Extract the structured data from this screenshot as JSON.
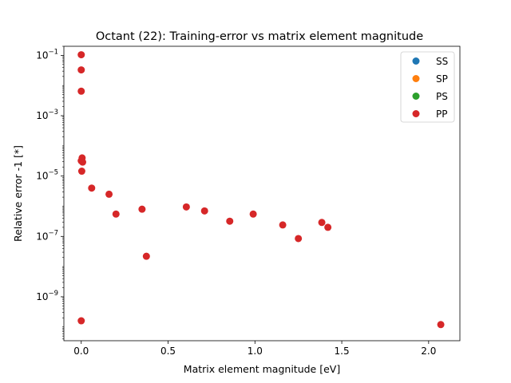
{
  "chart_data": {
    "type": "scatter",
    "title": "Octant (22): Training-error vs matrix element magnitude",
    "xlabel": "Matrix element magnitude [eV]",
    "ylabel": "Relative error -1 [*]",
    "xlim": [
      -0.1,
      2.18
    ],
    "ylim": [
      3.5e-11,
      0.2
    ],
    "yscale": "log",
    "grid": false,
    "legend_position": "top-right",
    "x_ticks": [
      {
        "value": 0.0,
        "label": "0.0"
      },
      {
        "value": 0.5,
        "label": "0.5"
      },
      {
        "value": 1.0,
        "label": "1.0"
      },
      {
        "value": 1.5,
        "label": "1.5"
      },
      {
        "value": 2.0,
        "label": "2.0"
      }
    ],
    "y_ticks": [
      {
        "exp": -9,
        "base": "10",
        "sup": "−9"
      },
      {
        "exp": -7,
        "base": "10",
        "sup": "−7"
      },
      {
        "exp": -5,
        "base": "10",
        "sup": "−5"
      },
      {
        "exp": -3,
        "base": "10",
        "sup": "−3"
      },
      {
        "exp": -1,
        "base": "10",
        "sup": "−1"
      }
    ],
    "series": [
      {
        "name": "SS",
        "color": "#1f77b4",
        "points": []
      },
      {
        "name": "SP",
        "color": "#ff7f0e",
        "points": []
      },
      {
        "name": "PS",
        "color": "#2ca02c",
        "points": []
      },
      {
        "name": "PP",
        "color": "#d62728",
        "points": [
          [
            0.0,
            0.105
          ],
          [
            0.0,
            0.033
          ],
          [
            0.0,
            0.0065
          ],
          [
            0.005,
            4e-05
          ],
          [
            0.0,
            3.2e-05
          ],
          [
            0.008,
            2.9e-05
          ],
          [
            0.003,
            1.45e-05
          ],
          [
            0.06,
            4e-06
          ],
          [
            0.16,
            2.5e-06
          ],
          [
            0.2,
            5.5e-07
          ],
          [
            0.35,
            8e-07
          ],
          [
            0.375,
            2.2e-08
          ],
          [
            0.605,
            9.5e-07
          ],
          [
            0.71,
            7e-07
          ],
          [
            0.855,
            3.2e-07
          ],
          [
            0.99,
            5.5e-07
          ],
          [
            1.16,
            2.4e-07
          ],
          [
            1.25,
            8.5e-08
          ],
          [
            1.385,
            2.9e-07
          ],
          [
            1.42,
            2e-07
          ],
          [
            0.0,
            1.6e-10
          ],
          [
            2.07,
            1.2e-10
          ]
        ]
      }
    ]
  }
}
